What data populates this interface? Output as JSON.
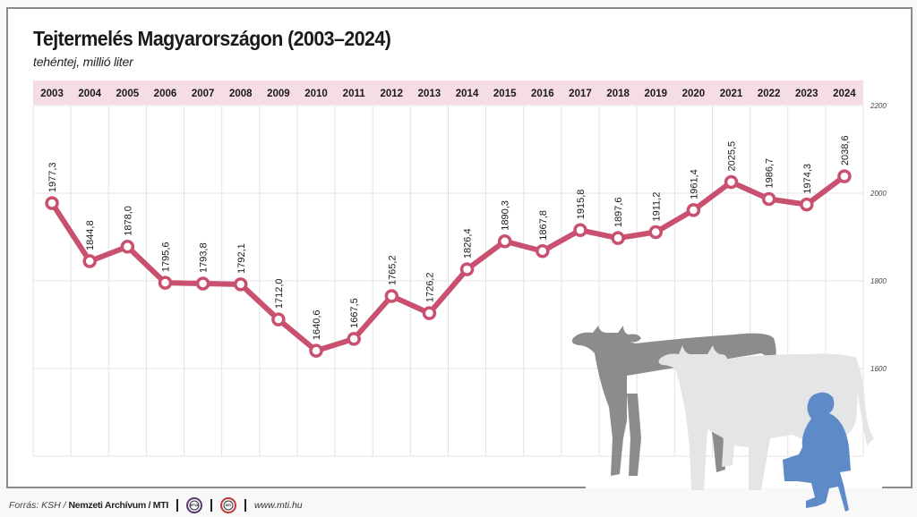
{
  "title": "Tejtermelés Magyarországon (2003–2024)",
  "subtitle": "tehéntej, millió liter",
  "footer": {
    "source_prefix": "Forrás: KSH / ",
    "source_bold": "Nemzeti Archívum / MTI",
    "logo1": "MTVA",
    "logo2": "MTI",
    "url": "www.mti.hu"
  },
  "colors": {
    "line": "#c9506f",
    "header_band": "#f6dde3",
    "cow_dark": "#8c8c8e",
    "cow_light": "#e4e5e6",
    "person": "#5f8ac8"
  },
  "chart_data": {
    "type": "line",
    "title": "Tejtermelés Magyarországon (2003–2024)",
    "subtitle": "tehéntej, millió liter",
    "xlabel": "",
    "ylabel": "",
    "categories": [
      "2003",
      "2004",
      "2005",
      "2006",
      "2007",
      "2008",
      "2009",
      "2010",
      "2011",
      "2012",
      "2013",
      "2014",
      "2015",
      "2016",
      "2017",
      "2018",
      "2019",
      "2020",
      "2021",
      "2022",
      "2023",
      "2024"
    ],
    "values": [
      1977.3,
      1844.8,
      1878.0,
      1795.6,
      1793.8,
      1792.1,
      1712.0,
      1640.6,
      1667.5,
      1765.2,
      1726.2,
      1826.4,
      1890.3,
      1867.8,
      1915.8,
      1897.6,
      1911.2,
      1961.4,
      2025.5,
      1986.7,
      1974.3,
      2038.6
    ],
    "value_labels": [
      "1977,3",
      "1844,8",
      "1878,0",
      "1795,6",
      "1793,8",
      "1792,1",
      "1712,0",
      "1640,6",
      "1667,5",
      "1765,2",
      "1726,2",
      "1826,4",
      "1890,3",
      "1867,8",
      "1915,8",
      "1897,6",
      "1911,2",
      "1961,4",
      "2025,5",
      "1986,7",
      "1974,3",
      "2038,6"
    ],
    "yticks": [
      2200,
      2000,
      1800,
      1600
    ],
    "ylim": [
      1400,
      2200
    ],
    "grid": true,
    "axis_position": "right"
  }
}
